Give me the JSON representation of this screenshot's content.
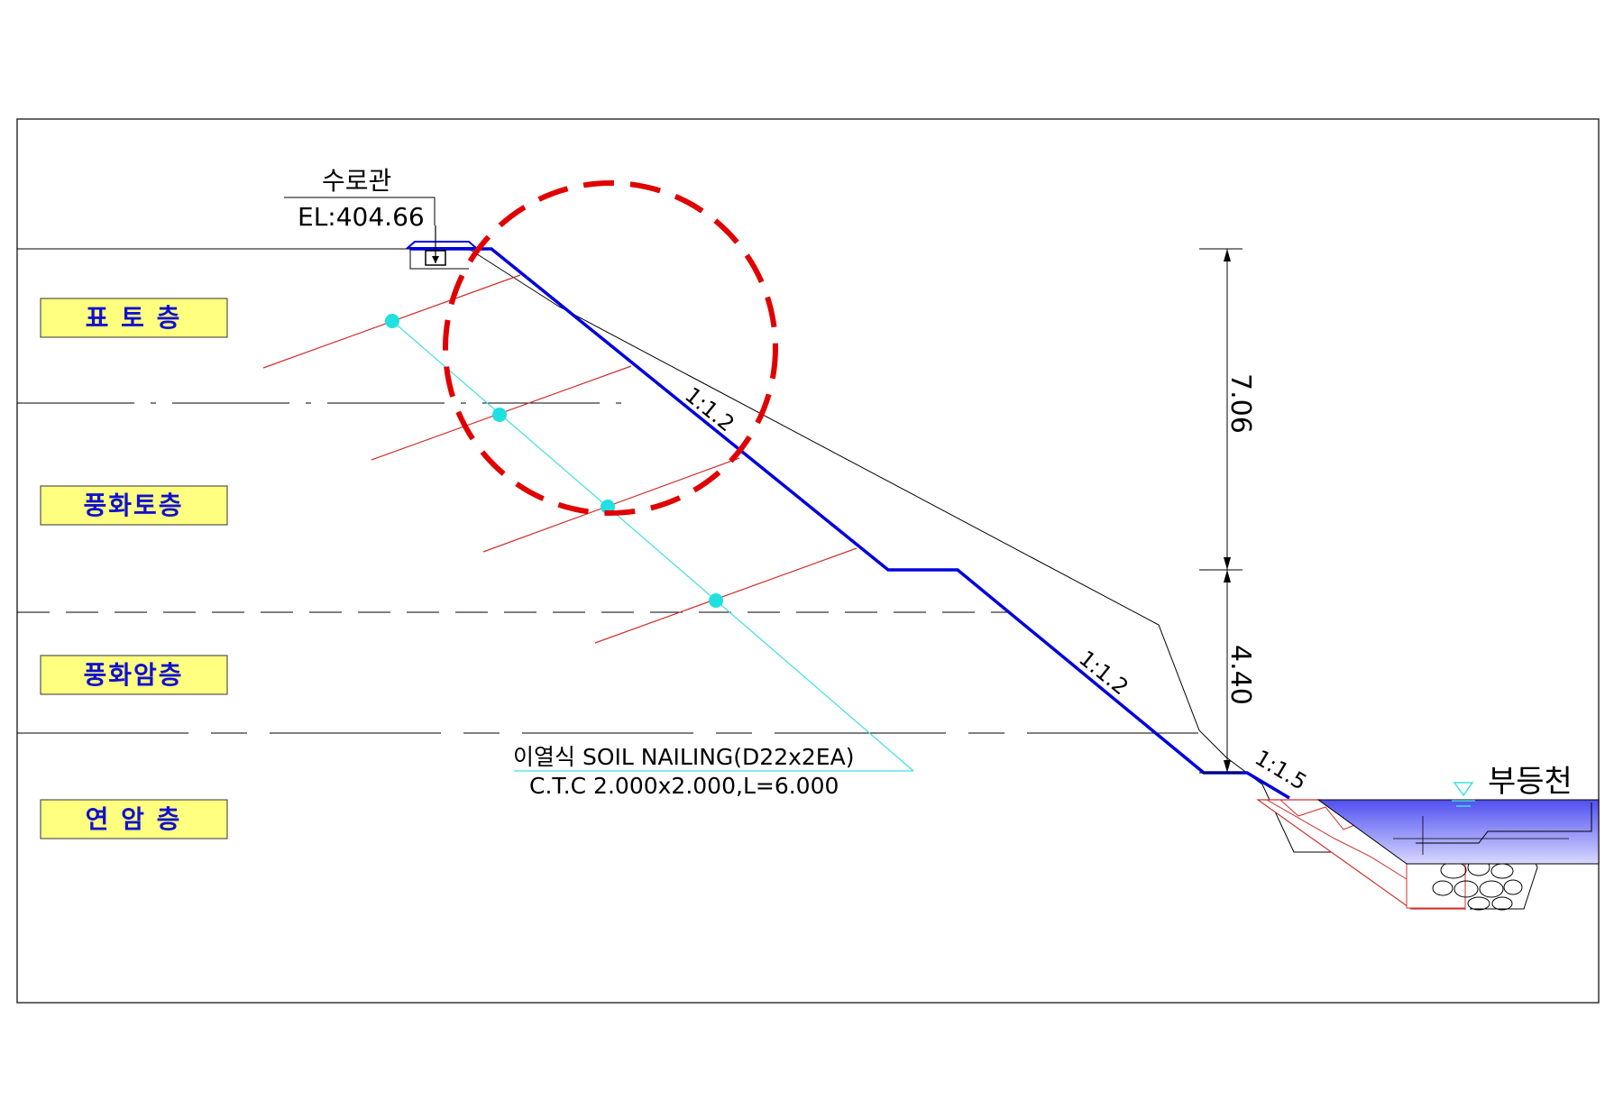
{
  "drawing": {
    "pipe_label": "수로관",
    "elevation_label": "EL:404.66",
    "layers": [
      {
        "key": "topsoil",
        "label": "표 토 층"
      },
      {
        "key": "weathered_soil",
        "label": "풍화토층"
      },
      {
        "key": "weathered_rock",
        "label": "풍화암층"
      },
      {
        "key": "soft_rock",
        "label": "연 암 층"
      }
    ],
    "layer_box_color": "#ffff80",
    "layer_text_color": "#1010d0",
    "dimensions": [
      "7.06",
      "4.40"
    ],
    "slopes": [
      "1:1.2",
      "1:1.2",
      "1:1.5"
    ],
    "nailing": {
      "line1": "이열식 SOIL NAILING(D22x2EA)",
      "line2": "C.T.C 2.000x2.000,L=6.000"
    },
    "river_label": "부등천",
    "colors": {
      "design_slope": "#0000dd",
      "nail": "#d03030",
      "leader": "#40e0e0",
      "highlight_circle": "#e00000",
      "water": "#6060f0"
    }
  }
}
